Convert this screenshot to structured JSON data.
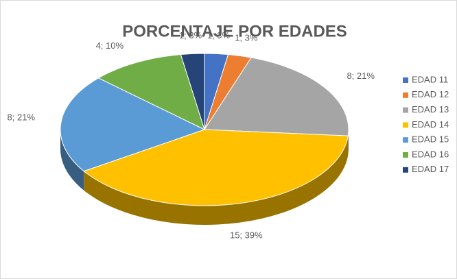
{
  "chart_data": {
    "type": "pie3d",
    "title": "PORCENTAJE POR EDADES",
    "categories": [
      "EDAD 11",
      "EDAD 12",
      "EDAD 13",
      "EDAD 14",
      "EDAD 15",
      "EDAD 16",
      "EDAD 17"
    ],
    "values": [
      1,
      1,
      8,
      15,
      8,
      4,
      1
    ],
    "value_labels": [
      "1; 3%",
      "1; 3%",
      "8; 21%",
      "15; 39%",
      "8; 21%",
      "4; 10%",
      "1; 3%"
    ],
    "colors": [
      "#4472c4",
      "#ed7d31",
      "#a5a5a5",
      "#ffc000",
      "#5b9bd5",
      "#70ad47",
      "#264478"
    ],
    "legend": "right"
  }
}
